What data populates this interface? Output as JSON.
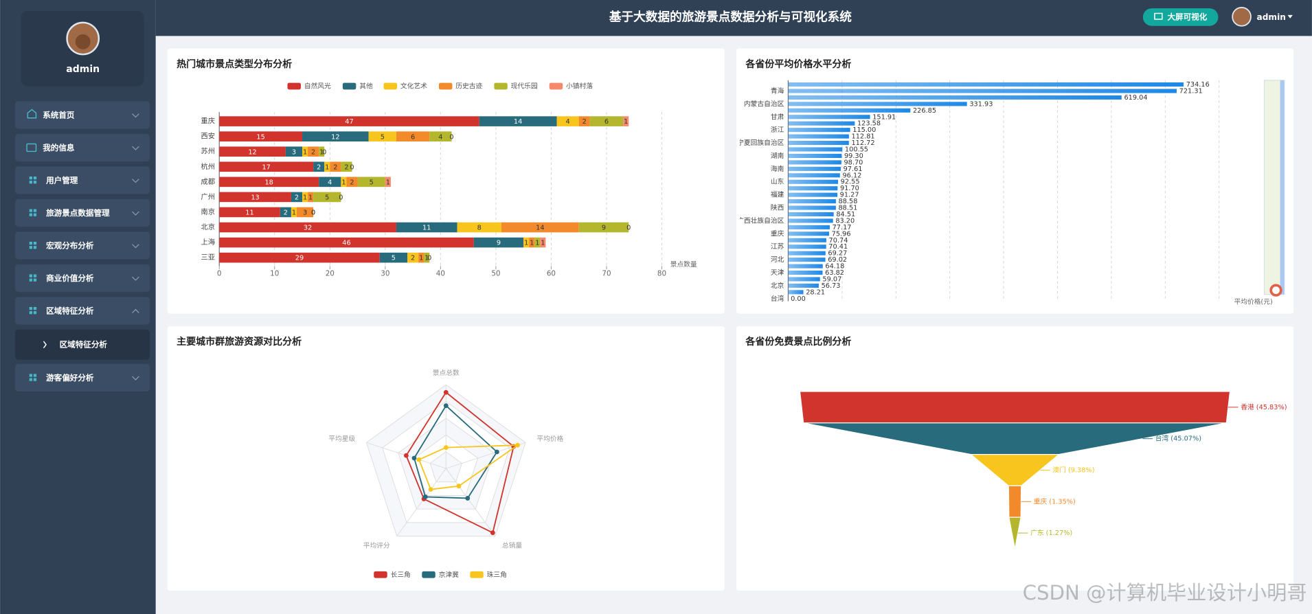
{
  "header": {
    "title": "基于大数据的旅游景点数据分析与可视化系统",
    "button": "大屏可视化",
    "username": "admin"
  },
  "sidebar": {
    "username": "admin",
    "menu": [
      "系统首页",
      "我的信息",
      "用户管理",
      "旅游景点数据管理",
      "宏观分布分析",
      "商业价值分析",
      "区域特征分析",
      "游客偏好分析"
    ],
    "submenu": [
      "区域特征分析"
    ]
  },
  "chart_data": [
    {
      "type": "bar",
      "orientation": "horizontal",
      "stacked": true,
      "title": "热门城市景点类型分布分析",
      "categories": [
        "重庆",
        "西安",
        "苏州",
        "杭州",
        "成都",
        "广州",
        "南京",
        "北京",
        "上海",
        "三亚"
      ],
      "series": [
        {
          "name": "自然风光",
          "color": "#d0342c",
          "values": [
            47,
            15,
            12,
            17,
            18,
            13,
            11,
            32,
            46,
            29
          ]
        },
        {
          "name": "其他",
          "color": "#276b7c",
          "values": [
            14,
            12,
            3,
            2,
            4,
            2,
            2,
            11,
            9,
            5
          ]
        },
        {
          "name": "文化艺术",
          "color": "#f7c51e",
          "values": [
            4,
            5,
            1,
            1,
            1,
            1,
            1,
            8,
            1,
            2
          ]
        },
        {
          "name": "历史古迹",
          "color": "#f2892a",
          "values": [
            2,
            6,
            2,
            2,
            2,
            1,
            3,
            14,
            1,
            1
          ]
        },
        {
          "name": "现代乐园",
          "color": "#b4b72d",
          "values": [
            6,
            4,
            1,
            2,
            5,
            5,
            0,
            9,
            1,
            1
          ]
        },
        {
          "name": "小镇村落",
          "color": "#f7896b",
          "values": [
            1,
            0,
            0,
            0,
            1,
            0,
            0,
            0,
            1,
            0
          ]
        }
      ],
      "xlim": [
        0,
        80
      ],
      "xticks": [
        0,
        10,
        20,
        30,
        40,
        50,
        60,
        70,
        80
      ],
      "xlabel": "景点数量",
      "grid": true,
      "legend": "top"
    },
    {
      "type": "bar",
      "orientation": "horizontal",
      "title": "各省份平均价格水平分析",
      "categories": [
        null,
        "青海",
        null,
        "内蒙古自治区",
        null,
        "甘肃",
        null,
        "浙江",
        null,
        "宁夏回族自治区",
        null,
        "湖南",
        null,
        "海南",
        null,
        "山东",
        null,
        "福建",
        null,
        "陕西",
        null,
        "广西壮族自治区",
        null,
        "重庆",
        null,
        "江苏",
        null,
        "河北",
        null,
        "天津",
        null,
        "北京",
        null,
        "台湾"
      ],
      "values": [
        734.16,
        721.31,
        619.04,
        331.93,
        226.85,
        151.91,
        123.58,
        115.0,
        112.81,
        112.72,
        100.55,
        99.3,
        98.7,
        97.61,
        96.12,
        92.55,
        91.7,
        91.27,
        88.58,
        88.51,
        84.51,
        83.2,
        77.17,
        75.96,
        70.74,
        70.41,
        69.27,
        69.02,
        64.18,
        63.82,
        59.07,
        56.73,
        28.21,
        0.0
      ],
      "value_labels": [
        "734.16",
        "721.31",
        "619.04",
        "331.93",
        "226.85",
        "151.91",
        "123.58",
        "115.00",
        "112.81",
        "112.72",
        "100.55",
        "99.30",
        "98.70",
        "97.61",
        "96.12",
        "92.55",
        "91.70",
        "91.27",
        "88.58",
        "88.51",
        "84.51",
        "83.20",
        "77.17",
        "75.96",
        "70.74",
        "70.41",
        "69.27",
        "69.02",
        "64.18",
        "63.82",
        "59.07",
        "56.73",
        "28.21",
        "0.00"
      ],
      "color": "#1e88e5",
      "xlim": [
        0,
        800
      ],
      "xticks": [
        0,
        100,
        200,
        300,
        400,
        500,
        600,
        700,
        800
      ],
      "xtick_labels": false,
      "xlabel": "平均价格(元)",
      "grid": true
    },
    {
      "type": "radar",
      "title": "主要城市群旅游资源对比分析",
      "indicators": [
        "景点总数",
        "平均价格",
        "总销量",
        "平均评分",
        "平均星级"
      ],
      "rlim": [
        0,
        100
      ],
      "series": [
        {
          "name": "长三角",
          "color": "#d0342c",
          "values": [
            91,
            85,
            95,
            45,
            50
          ]
        },
        {
          "name": "京津冀",
          "color": "#276b7c",
          "values": [
            75,
            64,
            44,
            42,
            40
          ]
        },
        {
          "name": "珠三角",
          "color": "#f7c51e",
          "values": [
            25,
            90,
            26,
            31,
            34
          ]
        }
      ],
      "legend": "bottom"
    },
    {
      "type": "funnel",
      "title": "各省份免费景点比例分析",
      "categories": [
        "香港",
        "台湾",
        "澳门",
        "重庆",
        "广东"
      ],
      "values": [
        45.83,
        45.07,
        9.38,
        1.35,
        1.27
      ],
      "value_labels": [
        "香港 (45.83%)",
        "台湾 (45.07%)",
        "澳门 (9.38%)",
        "重庆 (1.35%)",
        "广东 (1.27%)"
      ],
      "colors": [
        "#d0342c",
        "#276b7c",
        "#f7c51e",
        "#f2892a",
        "#b4b72d"
      ]
    }
  ],
  "watermark": "CSDN @计算机毕业设计小明哥"
}
